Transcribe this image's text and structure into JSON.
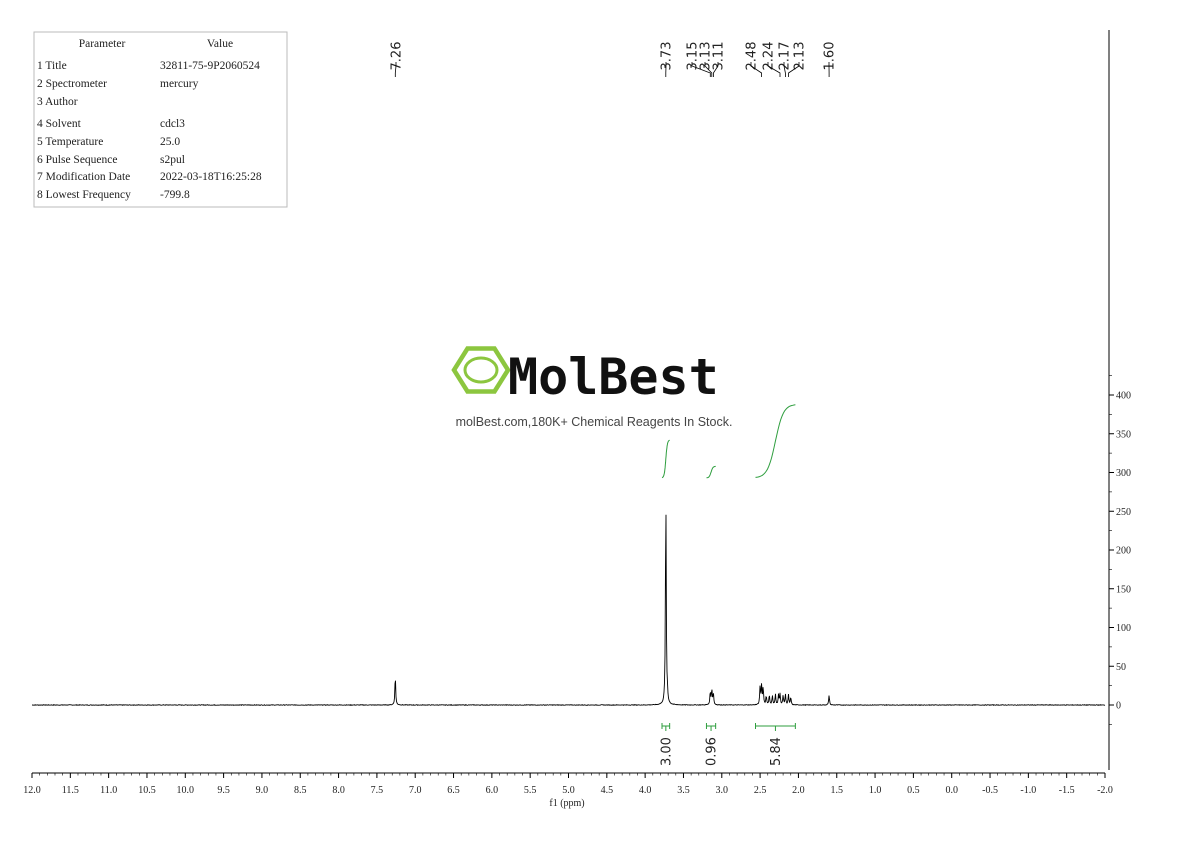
{
  "parameters": {
    "header": [
      "Parameter",
      "Value"
    ],
    "rows": [
      [
        "1 Title",
        "32811-75-9P2060524"
      ],
      [
        "2 Spectrometer",
        "mercury"
      ],
      [
        "3 Author",
        ""
      ],
      [
        "4 Solvent",
        "cdcl3"
      ],
      [
        "5 Temperature",
        "25.0"
      ],
      [
        "6 Pulse Sequence",
        "s2pul"
      ],
      [
        "7 Modification Date",
        "2022-03-18T16:25:28"
      ],
      [
        "8 Lowest Frequency",
        "-799.8"
      ]
    ]
  },
  "watermark": {
    "brand": "MolBest",
    "tagline": "molBest.com,180K+ Chemical Reagents In Stock.",
    "logo_color": "#8cc63f"
  },
  "chart_data": {
    "type": "line",
    "xlabel": "f1 (ppm)",
    "xlim": [
      12.0,
      -2.0
    ],
    "x_ticks": [
      "12.0",
      "11.5",
      "11.0",
      "10.5",
      "10.0",
      "9.5",
      "9.0",
      "8.5",
      "8.0",
      "7.5",
      "7.0",
      "6.5",
      "6.0",
      "5.5",
      "5.0",
      "4.5",
      "4.0",
      "3.5",
      "3.0",
      "2.5",
      "2.0",
      "1.5",
      "1.0",
      "0.5",
      "0.0",
      "-0.5",
      "-1.0",
      "-1.5",
      "-2.0"
    ],
    "ylim": [
      -45,
      440
    ],
    "y_ticks": [
      "0",
      "50",
      "100",
      "150",
      "200",
      "250",
      "300",
      "350",
      "400"
    ],
    "peak_labels": [
      "7.26",
      "3.73",
      "3.15",
      "3.13",
      "3.11",
      "2.48",
      "2.24",
      "2.17",
      "2.13",
      "1.60"
    ],
    "peaks": [
      {
        "ppm": 7.26,
        "height": 38
      },
      {
        "ppm": 3.73,
        "height": 275
      },
      {
        "ppm": 3.71,
        "height": 10
      },
      {
        "ppm": 3.15,
        "height": 17
      },
      {
        "ppm": 3.13,
        "height": 20
      },
      {
        "ppm": 3.11,
        "height": 15
      },
      {
        "ppm": 2.5,
        "height": 24
      },
      {
        "ppm": 2.48,
        "height": 26
      },
      {
        "ppm": 2.46,
        "height": 22
      },
      {
        "ppm": 2.42,
        "height": 12
      },
      {
        "ppm": 2.38,
        "height": 13
      },
      {
        "ppm": 2.34,
        "height": 12
      },
      {
        "ppm": 2.3,
        "height": 14
      },
      {
        "ppm": 2.26,
        "height": 13
      },
      {
        "ppm": 2.24,
        "height": 14
      },
      {
        "ppm": 2.2,
        "height": 12
      },
      {
        "ppm": 2.17,
        "height": 14
      },
      {
        "ppm": 2.13,
        "height": 13
      },
      {
        "ppm": 2.1,
        "height": 10
      },
      {
        "ppm": 1.6,
        "height": 13
      }
    ],
    "integrals": [
      {
        "from": 3.78,
        "to": 3.68,
        "value": "3.00",
        "curve_y_start": 293,
        "curve_y_end": 342
      },
      {
        "from": 3.2,
        "to": 3.08,
        "value": "0.96",
        "curve_y_start": 293,
        "curve_y_end": 308
      },
      {
        "from": 2.56,
        "to": 2.04,
        "value": "5.84",
        "curve_y_start": 293,
        "curve_y_end": 388
      }
    ],
    "color_spectrum": "#000000",
    "color_integral": "#2e9e3e"
  }
}
